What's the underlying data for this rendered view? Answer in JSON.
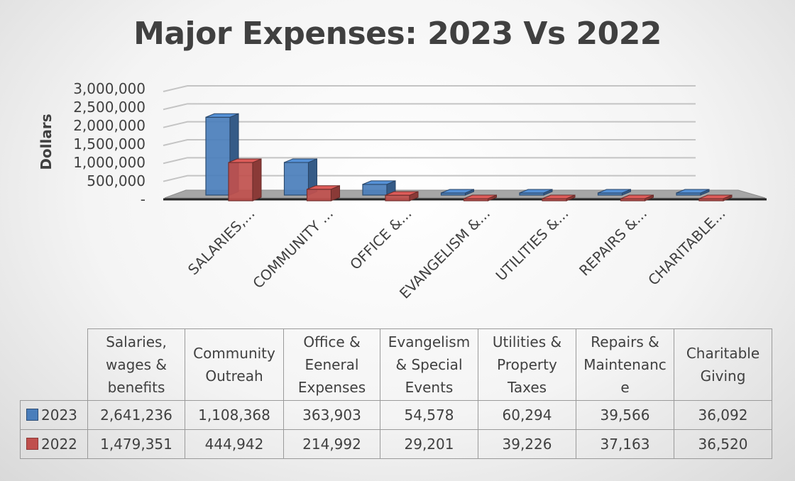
{
  "chart_data": {
    "type": "bar",
    "title": "Major Expenses: 2023 Vs 2022",
    "ylabel": "Dollars",
    "ylim": [
      0,
      3000000
    ],
    "yticks": [
      "-",
      "500,000",
      "1,000,000",
      "1,500,000",
      "2,000,000",
      "2,500,000",
      "3,000,000"
    ],
    "categories": [
      "SALARIES,...",
      "COMMUNITY ...",
      "OFFICE &...",
      "EVANGELISM &...",
      "UTILITIES &...",
      "REPAIRS &...",
      "CHARITABLE..."
    ],
    "table_headers": [
      "Salaries, wages & benefits",
      "Community Outreah",
      "Office & Eeneral Expenses",
      "Evangelism & Special Events",
      "Utilities & Property Taxes",
      "Repairs & Maintenanc e",
      "Charitable Giving"
    ],
    "series": [
      {
        "name": "2023",
        "color": "#4a7ebb",
        "values": [
          2641236,
          1108368,
          363903,
          54578,
          60294,
          39566,
          36092
        ],
        "labels": [
          "2,641,236",
          "1,108,368",
          "363,903",
          "54,578",
          "60,294",
          "39,566",
          "36,092"
        ]
      },
      {
        "name": "2022",
        "color": "#c0504d",
        "values": [
          1479351,
          444942,
          214992,
          29201,
          39226,
          37163,
          36520
        ],
        "labels": [
          "1,479,351",
          "444,942",
          "214,992",
          "29,201",
          "39,226",
          "37,163",
          "36,520"
        ]
      }
    ],
    "grid": true,
    "legend": "table"
  }
}
